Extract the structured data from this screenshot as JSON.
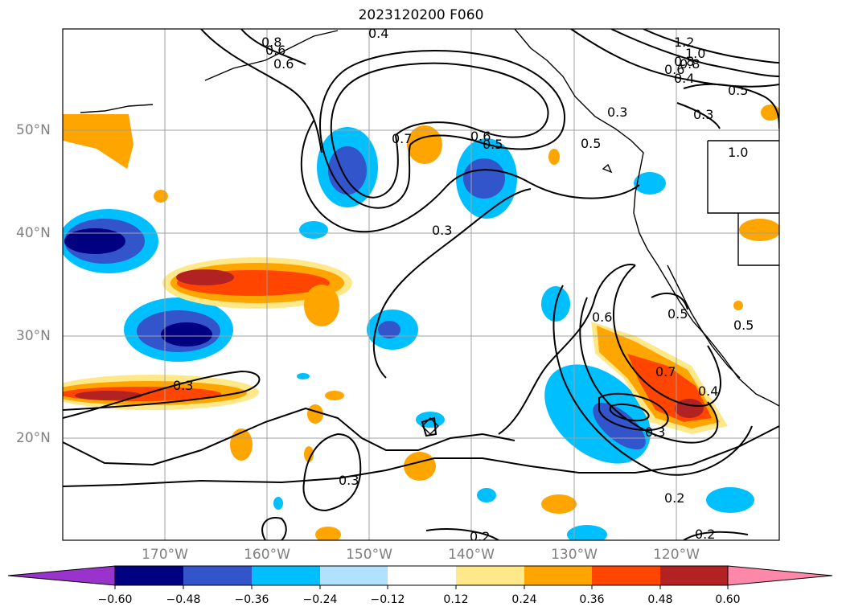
{
  "title": "2023120200 F060",
  "map": {
    "lat_labels": [
      "50°N",
      "40°N",
      "30°N",
      "20°N"
    ],
    "lon_labels": [
      "170°W",
      "160°W",
      "150°W",
      "140°W",
      "130°W",
      "120°W"
    ],
    "contour_labels": [
      "1.2",
      "1.0",
      "0.8",
      "0.6",
      "0.4",
      "0.4",
      "0.5",
      "0.3",
      "0.7",
      "0.6",
      "0.5",
      "0.3",
      "0.3",
      "0.6",
      "0.5",
      "0.7",
      "0.4",
      "0.3",
      "0.3",
      "0.2",
      "0.2",
      "0.2",
      "0.3",
      "0.5",
      "0.6",
      "0.8",
      "0.6",
      "0.8",
      "1.0",
      "0.5"
    ]
  },
  "colorbar": {
    "ticks": [
      "−0.60",
      "−0.48",
      "−0.36",
      "−0.24",
      "−0.12",
      "0.12",
      "0.24",
      "0.36",
      "0.48",
      "0.60"
    ],
    "colors": [
      "#9933cc",
      "#000080",
      "#3355cc",
      "#00bfff",
      "#b0e2ff",
      "#ffffff",
      "#ffe88a",
      "#ffa500",
      "#ff4500",
      "#b22222",
      "#ff88aa"
    ]
  }
}
